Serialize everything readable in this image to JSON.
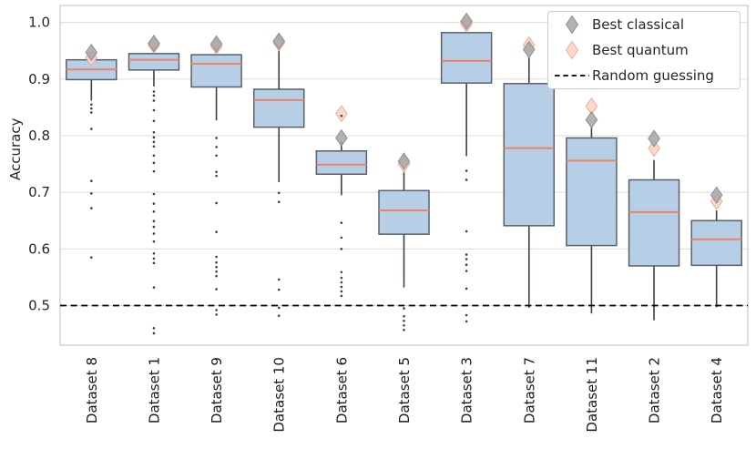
{
  "chart_data": {
    "type": "boxplot",
    "title": "",
    "xlabel": "",
    "ylabel": "Accuracy",
    "ylim": [
      0.43,
      1.03
    ],
    "yticks": [
      1.0,
      0.9,
      0.8,
      0.7,
      0.6,
      0.5
    ],
    "grid": true,
    "legend_position": "upper right",
    "legend_entries": {
      "classical": "Best classical",
      "quantum": "Best quantum",
      "random": "Random guessing"
    },
    "reference_line": {
      "label": "Random guessing",
      "value": 0.5,
      "style": "dashed"
    },
    "categories": [
      "Dataset 8",
      "Dataset 1",
      "Dataset 9",
      "Dataset 10",
      "Dataset 6",
      "Dataset 5",
      "Dataset 3",
      "Dataset 7",
      "Dataset 11",
      "Dataset 2",
      "Dataset 4"
    ],
    "boxes": [
      {
        "label": "Dataset 8",
        "whisker_low": 0.862,
        "q1": 0.899,
        "median": 0.917,
        "q3": 0.934,
        "whisker_high": 0.94,
        "best_classical": 0.947,
        "best_quantum": 0.938,
        "outliers": [
          0.855,
          0.848,
          0.841,
          0.812,
          0.72,
          0.698,
          0.672,
          0.585
        ]
      },
      {
        "label": "Dataset 1",
        "whisker_low": 0.887,
        "q1": 0.916,
        "median": 0.934,
        "q3": 0.945,
        "whisker_high": 0.951,
        "best_classical": 0.963,
        "best_quantum": 0.96,
        "outliers": [
          0.878,
          0.871,
          0.862,
          0.845,
          0.826,
          0.806,
          0.797,
          0.789,
          0.781,
          0.765,
          0.752,
          0.737,
          0.697,
          0.68,
          0.666,
          0.649,
          0.639,
          0.627,
          0.613,
          0.592,
          0.583,
          0.575,
          0.532,
          0.46,
          0.451
        ]
      },
      {
        "label": "Dataset 9",
        "whisker_low": 0.827,
        "q1": 0.886,
        "median": 0.927,
        "q3": 0.943,
        "whisker_high": 0.949,
        "best_classical": 0.962,
        "best_quantum": 0.958,
        "outliers": [
          0.796,
          0.78,
          0.765,
          0.736,
          0.729,
          0.681,
          0.63,
          0.586,
          0.576,
          0.568,
          0.56,
          0.552,
          0.529,
          0.492,
          0.484
        ]
      },
      {
        "label": "Dataset 10",
        "whisker_low": 0.718,
        "q1": 0.815,
        "median": 0.863,
        "q3": 0.882,
        "whisker_high": 0.96,
        "best_classical": 0.967,
        "best_quantum": 0.964,
        "outliers": [
          0.699,
          0.683,
          0.546,
          0.528,
          0.496,
          0.482
        ]
      },
      {
        "label": "Dataset 6",
        "whisker_low": 0.695,
        "q1": 0.732,
        "median": 0.749,
        "q3": 0.773,
        "whisker_high": 0.79,
        "best_classical": 0.796,
        "best_quantum": 0.839,
        "outliers": [
          0.835,
          0.646,
          0.62,
          0.6,
          0.559,
          0.549,
          0.541,
          0.533,
          0.525,
          0.517
        ]
      },
      {
        "label": "Dataset 5",
        "whisker_low": 0.532,
        "q1": 0.626,
        "median": 0.668,
        "q3": 0.703,
        "whisker_high": 0.745,
        "best_classical": 0.755,
        "best_quantum": 0.75,
        "outliers": [
          0.495,
          0.481,
          0.473,
          0.465,
          0.457
        ]
      },
      {
        "label": "Dataset 3",
        "whisker_low": 0.764,
        "q1": 0.893,
        "median": 0.932,
        "q3": 0.982,
        "whisker_high": 0.99,
        "best_classical": 1.002,
        "best_quantum": 0.997,
        "outliers": [
          0.738,
          0.722,
          0.631,
          0.59,
          0.582,
          0.572,
          0.561,
          0.53,
          0.483,
          0.472
        ]
      },
      {
        "label": "Dataset 7",
        "whisker_low": 0.496,
        "q1": 0.641,
        "median": 0.778,
        "q3": 0.892,
        "whisker_high": 0.94,
        "best_classical": 0.952,
        "best_quantum": 0.96,
        "outliers": []
      },
      {
        "label": "Dataset 11",
        "whisker_low": 0.486,
        "q1": 0.606,
        "median": 0.756,
        "q3": 0.796,
        "whisker_high": 0.815,
        "best_classical": 0.828,
        "best_quantum": 0.852,
        "outliers": []
      },
      {
        "label": "Dataset 2",
        "whisker_low": 0.474,
        "q1": 0.57,
        "median": 0.665,
        "q3": 0.722,
        "whisker_high": 0.757,
        "best_classical": 0.795,
        "best_quantum": 0.778,
        "outliers": []
      },
      {
        "label": "Dataset 4",
        "whisker_low": 0.497,
        "q1": 0.571,
        "median": 0.617,
        "q3": 0.65,
        "whisker_high": 0.668,
        "best_classical": 0.695,
        "best_quantum": 0.684,
        "outliers": []
      }
    ],
    "colors": {
      "box_fill": "#b7cfe6",
      "box_edge": "#5b6068",
      "median": "#ef8165",
      "whisker": "#3b4046",
      "flier": "#3d4147",
      "classical_fill": "#a6a6a6",
      "classical_edge": "#8f8f8f",
      "quantum_fill": "#fcd7c8",
      "quantum_edge": "#f1ab95",
      "grid": "#dcdcdc",
      "spine": "#cccccc",
      "reference": "#000000",
      "tick_text": "#262626"
    }
  }
}
